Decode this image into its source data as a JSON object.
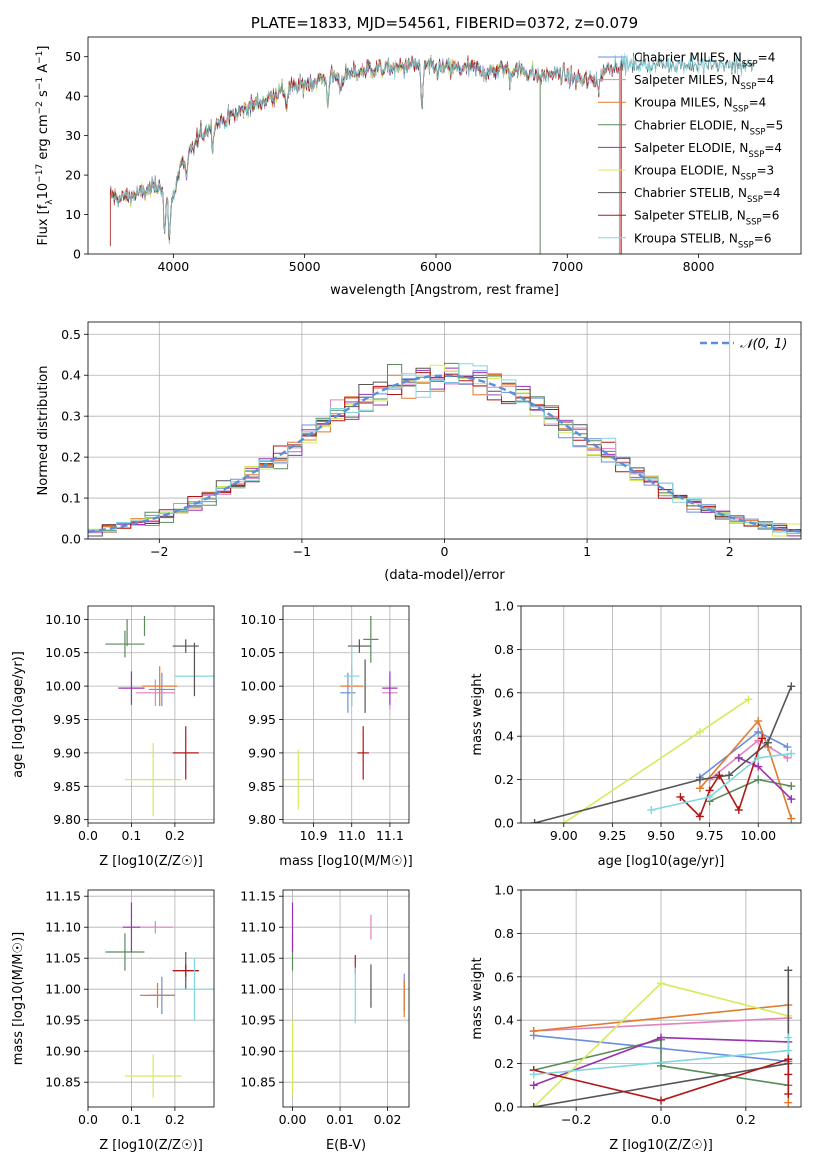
{
  "figure": {
    "title": "PLATE=1833, MJD=54561, FIBERID=0372, z=0.079"
  },
  "colors": {
    "Chabrier MILES": "#6a8fdc",
    "Salpeter MILES": "#e083c0",
    "Kroupa MILES": "#e07b2d",
    "Chabrier ELODIE": "#5b8a5b",
    "Salpeter ELODIE": "#9b30b0",
    "Kroupa ELODIE": "#d4ec5a",
    "Chabrier STELIB": "#555555",
    "Salpeter STELIB": "#b01818",
    "Kroupa STELIB": "#7fd8e0",
    "normal": "#5b8fd8"
  },
  "chart_data": [
    {
      "id": "spectrum",
      "type": "line",
      "title": "PLATE=1833, MJD=54561, FIBERID=0372, z=0.079",
      "xlabel": "wavelength [Angstrom, rest frame]",
      "ylabel": "Flux [f_λ 10^−17 erg cm^−2 s^−1 A^−1]",
      "xlim": [
        3350,
        8780
      ],
      "ylim": [
        0,
        55
      ],
      "xticks": [
        4000,
        5000,
        6000,
        7000,
        8000
      ],
      "yticks": [
        0,
        10,
        20,
        30,
        40,
        50
      ],
      "grid": false,
      "legend_position": "top-right",
      "continuum": {
        "x": [
          3520,
          3600,
          3700,
          3800,
          3900,
          3980,
          4050,
          4100,
          4200,
          4300,
          4400,
          4500,
          4600,
          4700,
          4800,
          4900,
          5000,
          5100,
          5200,
          5300,
          5400,
          5500,
          5600,
          5700,
          5800,
          5900,
          6000,
          6100,
          6200,
          6300,
          6400,
          6500,
          6600,
          6700,
          6800,
          6900,
          7000,
          7100,
          7200,
          7300,
          7400,
          7500,
          7600,
          7700,
          7800,
          7900,
          8000,
          8100,
          8200,
          8300,
          8420
        ],
        "y": [
          15,
          14,
          15,
          16,
          18,
          12,
          22,
          24,
          30,
          33,
          34,
          36,
          38,
          39,
          41,
          42,
          43,
          44,
          45,
          45,
          46,
          47,
          47,
          47,
          48,
          48,
          47,
          47,
          47,
          47,
          46,
          47,
          47,
          46,
          45,
          46,
          45,
          44,
          44,
          47,
          48,
          48,
          48,
          48,
          48,
          48,
          48,
          48,
          48,
          48,
          47
        ]
      },
      "series": [
        {
          "name": "Chabrier MILES, N_SSP=4",
          "cutoff": 7400
        },
        {
          "name": "Salpeter MILES, N_SSP=4",
          "cutoff": 7410
        },
        {
          "name": "Kroupa MILES, N_SSP=4",
          "cutoff": 7405
        },
        {
          "name": "Chabrier ELODIE, N_SSP=5",
          "cutoff": 6800
        },
        {
          "name": "Salpeter ELODIE, N_SSP=4",
          "cutoff": 6790
        },
        {
          "name": "Kroupa ELODIE, N_SSP=3",
          "cutoff": 6795
        },
        {
          "name": "Chabrier STELIB, N_SSP=4",
          "cutoff": 8420
        },
        {
          "name": "Salpeter STELIB, N_SSP=6",
          "cutoff": 7415
        },
        {
          "name": "Kroupa STELIB, N_SSP=6",
          "cutoff": 8420
        }
      ]
    },
    {
      "id": "histogram",
      "type": "bar",
      "xlabel": "(data-model)/error",
      "ylabel": "Normed distribution",
      "xlim": [
        -2.5,
        2.5
      ],
      "ylim": [
        0,
        0.53
      ],
      "xticks": [
        -2,
        -1,
        0,
        1,
        2
      ],
      "yticks": [
        0,
        0.1,
        0.2,
        0.3,
        0.4,
        0.5
      ],
      "grid": true,
      "legend_position": "top-right",
      "legend": "𝒩(0, 1)",
      "bin_width": 0.1,
      "bin_start": -2.5
    },
    {
      "id": "age_vs_Z",
      "type": "scatter",
      "xlabel": "Z [log10(Z/Z☉)]",
      "ylabel": "age [log10(age/yr)]",
      "xlim": [
        0.0,
        0.29
      ],
      "ylim": [
        9.795,
        10.12
      ],
      "xticks": [
        0.0,
        0.1,
        0.2
      ],
      "yticks": [
        9.8,
        9.85,
        9.9,
        9.95,
        10.0,
        10.05,
        10.1
      ],
      "points": [
        {
          "series": "Chabrier MILES",
          "x": 0.17,
          "y": 9.995,
          "xerr": 0.03,
          "yerr": 0.025
        },
        {
          "series": "Salpeter MILES",
          "x": 0.155,
          "y": 9.99,
          "xerr": 0.045,
          "yerr": 0.02
        },
        {
          "series": "Kroupa MILES",
          "x": 0.165,
          "y": 10.0,
          "xerr": 0.04,
          "yerr": 0.03
        },
        {
          "series": "Chabrier ELODIE",
          "x": 0.085,
          "y": 10.063,
          "xerr": 0.045,
          "yerr": 0.02
        },
        {
          "series": "Salpeter ELODIE",
          "x": 0.1,
          "y": 9.997,
          "xerr": 0.03,
          "yerr": 0.025
        },
        {
          "series": "Kroupa ELODIE",
          "x": 0.15,
          "y": 9.86,
          "xerr": 0.065,
          "yerr": 0.055
        },
        {
          "series": "Chabrier STELIB",
          "x": 0.225,
          "y": 10.06,
          "xerr": 0.03,
          "yerr": 0.01
        },
        {
          "series": "Salpeter STELIB",
          "x": 0.225,
          "y": 9.9,
          "xerr": 0.03,
          "yerr": 0.04
        },
        {
          "series": "Kroupa STELIB",
          "x": 0.245,
          "y": 10.015,
          "xerr": 0.045,
          "yerr": 0.03
        },
        {
          "series": "Chabrier ELODIE",
          "x": 0.13,
          "y": 10.09,
          "xerr": 0.0,
          "yerr": 0.015
        },
        {
          "series": "Chabrier STELIB",
          "x": 0.245,
          "y": 10.025,
          "xerr": 0.0,
          "yerr": 0.04
        },
        {
          "series": "Chabrier ELODIE",
          "x": 0.09,
          "y": 10.08,
          "xerr": 0.0,
          "yerr": 0.02
        }
      ]
    },
    {
      "id": "age_vs_mass",
      "type": "scatter",
      "xlabel": "mass [log10(M/M☉)]",
      "ylabel": "",
      "xlim": [
        10.82,
        11.15
      ],
      "ylim": [
        9.795,
        10.12
      ],
      "xticks": [
        10.9,
        11.0,
        11.1
      ],
      "yticks": [
        9.8,
        9.85,
        9.9,
        9.95,
        10.0,
        10.05,
        10.1
      ],
      "points": [
        {
          "series": "Chabrier MILES",
          "x": 10.99,
          "y": 9.99,
          "xerr": 0.02,
          "yerr": 0.03
        },
        {
          "series": "Salpeter MILES",
          "x": 11.1,
          "y": 9.99,
          "xerr": 0.02,
          "yerr": 0.025
        },
        {
          "series": "Kroupa MILES",
          "x": 11.0,
          "y": 10.0,
          "xerr": 0.03,
          "yerr": 0.03
        },
        {
          "series": "Chabrier ELODIE",
          "x": 11.05,
          "y": 10.07,
          "xerr": 0.02,
          "yerr": 0.035
        },
        {
          "series": "Salpeter ELODIE",
          "x": 11.1,
          "y": 9.997,
          "xerr": 0.02,
          "yerr": 0.025
        },
        {
          "series": "Kroupa ELODIE",
          "x": 10.86,
          "y": 9.86,
          "xerr": 0.04,
          "yerr": 0.045
        },
        {
          "series": "Chabrier STELIB",
          "x": 11.02,
          "y": 10.06,
          "xerr": 0.03,
          "yerr": 0.01
        },
        {
          "series": "Salpeter STELIB",
          "x": 11.03,
          "y": 9.9,
          "xerr": 0.015,
          "yerr": 0.04
        },
        {
          "series": "Kroupa STELIB",
          "x": 11.0,
          "y": 10.015,
          "xerr": 0.02,
          "yerr": 0.045
        },
        {
          "series": "Chabrier STELIB",
          "x": 11.035,
          "y": 10.0,
          "xerr": 0.0,
          "yerr": 0.04
        }
      ]
    },
    {
      "id": "weight_vs_age",
      "type": "line",
      "xlabel": "age [log10(age/yr)]",
      "ylabel": "mass weight",
      "xlim": [
        8.78,
        10.22
      ],
      "ylim": [
        0,
        1.0
      ],
      "xticks": [
        9.0,
        9.25,
        9.5,
        9.75,
        10.0
      ],
      "yticks": [
        0.0,
        0.2,
        0.4,
        0.6,
        0.8,
        1.0
      ],
      "grid": true,
      "series": [
        {
          "name": "Chabrier MILES",
          "x": [
            9.7,
            10.0,
            10.15
          ],
          "y": [
            0.21,
            0.42,
            0.35
          ]
        },
        {
          "name": "Salpeter MILES",
          "x": [
            9.75,
            10.0,
            10.15
          ],
          "y": [
            0.2,
            0.38,
            0.3
          ]
        },
        {
          "name": "Kroupa MILES",
          "x": [
            9.7,
            10.0,
            10.05,
            10.17
          ],
          "y": [
            0.16,
            0.47,
            0.35,
            0.02
          ]
        },
        {
          "name": "Chabrier ELODIE",
          "x": [
            9.75,
            10.0,
            10.17
          ],
          "y": [
            0.1,
            0.2,
            0.17
          ]
        },
        {
          "name": "Salpeter ELODIE",
          "x": [
            9.9,
            10.0,
            10.17
          ],
          "y": [
            0.3,
            0.26,
            0.11
          ]
        },
        {
          "name": "Kroupa ELODIE",
          "x": [
            9.0,
            9.7,
            9.95
          ],
          "y": [
            0.0,
            0.42,
            0.57
          ]
        },
        {
          "name": "Chabrier STELIB",
          "x": [
            8.85,
            9.7,
            9.85,
            10.05,
            10.17
          ],
          "y": [
            0.0,
            0.2,
            0.22,
            0.37,
            0.63
          ]
        },
        {
          "name": "Salpeter STELIB",
          "x": [
            9.6,
            9.7,
            9.75,
            9.8,
            9.9,
            10.02
          ],
          "y": [
            0.12,
            0.03,
            0.15,
            0.22,
            0.06,
            0.39
          ]
        },
        {
          "name": "Kroupa STELIB",
          "x": [
            9.45,
            9.75,
            10.0,
            10.17
          ],
          "y": [
            0.06,
            0.12,
            0.3,
            0.32
          ]
        }
      ]
    },
    {
      "id": "mass_vs_Z",
      "type": "scatter",
      "xlabel": "Z [log10(Z/Z☉)]",
      "ylabel": "mass [log10(M/M☉)]",
      "xlim": [
        0.0,
        0.29
      ],
      "ylim": [
        10.81,
        11.16
      ],
      "xticks": [
        0.0,
        0.1,
        0.2
      ],
      "yticks": [
        10.85,
        10.9,
        10.95,
        11.0,
        11.05,
        11.1,
        11.15
      ],
      "points": [
        {
          "series": "Chabrier MILES",
          "x": 0.17,
          "y": 10.99,
          "xerr": 0.03,
          "yerr": 0.03
        },
        {
          "series": "Salpeter MILES",
          "x": 0.155,
          "y": 11.1,
          "xerr": 0.04,
          "yerr": 0.01
        },
        {
          "series": "Kroupa MILES",
          "x": 0.16,
          "y": 10.99,
          "xerr": 0.04,
          "yerr": 0.02
        },
        {
          "series": "Chabrier ELODIE",
          "x": 0.085,
          "y": 11.06,
          "xerr": 0.045,
          "yerr": 0.03
        },
        {
          "series": "Salpeter ELODIE",
          "x": 0.1,
          "y": 11.1,
          "xerr": 0.02,
          "yerr": 0.04
        },
        {
          "series": "Kroupa ELODIE",
          "x": 0.15,
          "y": 10.86,
          "xerr": 0.065,
          "yerr": 0.035
        },
        {
          "series": "Chabrier STELIB",
          "x": 0.225,
          "y": 11.03,
          "xerr": 0.03,
          "yerr": 0.03
        },
        {
          "series": "Salpeter STELIB",
          "x": 0.225,
          "y": 11.03,
          "xerr": 0.03,
          "yerr": 0.01
        },
        {
          "series": "Kroupa STELIB",
          "x": 0.245,
          "y": 11.0,
          "xerr": 0.045,
          "yerr": 0.05
        }
      ]
    },
    {
      "id": "mass_vs_EBV",
      "type": "scatter",
      "xlabel": "E(B-V)",
      "ylabel": "",
      "xlim": [
        -0.002,
        0.0245
      ],
      "ylim": [
        10.81,
        11.16
      ],
      "xticks": [
        0.0,
        0.01,
        0.02
      ],
      "yticks": [
        10.85,
        10.9,
        10.95,
        11.0,
        11.05,
        11.1,
        11.15
      ],
      "points": [
        {
          "series": "Chabrier MILES",
          "x": 0.0235,
          "y": 10.995,
          "xerr": 0.0,
          "yerr": 0.03
        },
        {
          "series": "Salpeter MILES",
          "x": 0.0165,
          "y": 11.1,
          "xerr": 0.0,
          "yerr": 0.02
        },
        {
          "series": "Kroupa MILES",
          "x": 0.0235,
          "y": 10.985,
          "xerr": 0.0,
          "yerr": 0.03
        },
        {
          "series": "Chabrier ELODIE",
          "x": 0.0,
          "y": 11.06,
          "xerr": 0.0,
          "yerr": 0.03
        },
        {
          "series": "Salpeter ELODIE",
          "x": 0.0,
          "y": 11.1,
          "xerr": 0.0,
          "yerr": 0.04
        },
        {
          "series": "Kroupa ELODIE",
          "x": 0.0,
          "y": 10.89,
          "xerr": 0.0,
          "yerr": 0.06
        },
        {
          "series": "Chabrier STELIB",
          "x": 0.0165,
          "y": 11.005,
          "xerr": 0.0,
          "yerr": 0.035
        },
        {
          "series": "Salpeter STELIB",
          "x": 0.0132,
          "y": 11.04,
          "xerr": 0.0,
          "yerr": 0.015
        },
        {
          "series": "Kroupa STELIB",
          "x": 0.0132,
          "y": 10.99,
          "xerr": 0.0,
          "yerr": 0.045
        }
      ]
    },
    {
      "id": "weight_vs_Z",
      "type": "line",
      "xlabel": "Z [log10(Z/Z☉)]",
      "ylabel": "mass weight",
      "xlim": [
        -0.33,
        0.33
      ],
      "ylim": [
        0,
        1.0
      ],
      "xticks": [
        -0.2,
        0.0,
        0.2
      ],
      "yticks": [
        0.0,
        0.2,
        0.4,
        0.6,
        0.8,
        1.0
      ],
      "grid": true,
      "series": [
        {
          "name": "Chabrier MILES",
          "x": [
            -0.3,
            0.0,
            0.3
          ],
          "y": [
            0.33,
            0.27,
            0.21
          ]
        },
        {
          "name": "Salpeter MILES",
          "x": [
            -0.3,
            0.3
          ],
          "y": [
            0.35,
            0.41
          ]
        },
        {
          "name": "Kroupa MILES",
          "x": [
            -0.3,
            0.3,
            0.3
          ],
          "y": [
            0.35,
            0.47,
            0.02
          ]
        },
        {
          "name": "Chabrier ELODIE",
          "x": [
            -0.3,
            0.0,
            0.0,
            0.3
          ],
          "y": [
            0.17,
            0.31,
            0.19,
            0.1
          ]
        },
        {
          "name": "Salpeter ELODIE",
          "x": [
            -0.3,
            0.0,
            0.3
          ],
          "y": [
            0.1,
            0.32,
            0.3
          ]
        },
        {
          "name": "Kroupa ELODIE",
          "x": [
            -0.3,
            0.0,
            0.3
          ],
          "y": [
            0.0,
            0.57,
            0.42
          ]
        },
        {
          "name": "Chabrier STELIB",
          "x": [
            -0.3,
            0.3,
            0.3
          ],
          "y": [
            0.0,
            0.2,
            0.63
          ]
        },
        {
          "name": "Salpeter STELIB",
          "x": [
            -0.3,
            0.0,
            0.3,
            0.3,
            0.3
          ],
          "y": [
            0.17,
            0.03,
            0.22,
            0.15,
            0.06
          ]
        },
        {
          "name": "Kroupa STELIB",
          "x": [
            -0.3,
            0.3,
            0.3
          ],
          "y": [
            0.15,
            0.26,
            0.32
          ]
        }
      ]
    }
  ]
}
